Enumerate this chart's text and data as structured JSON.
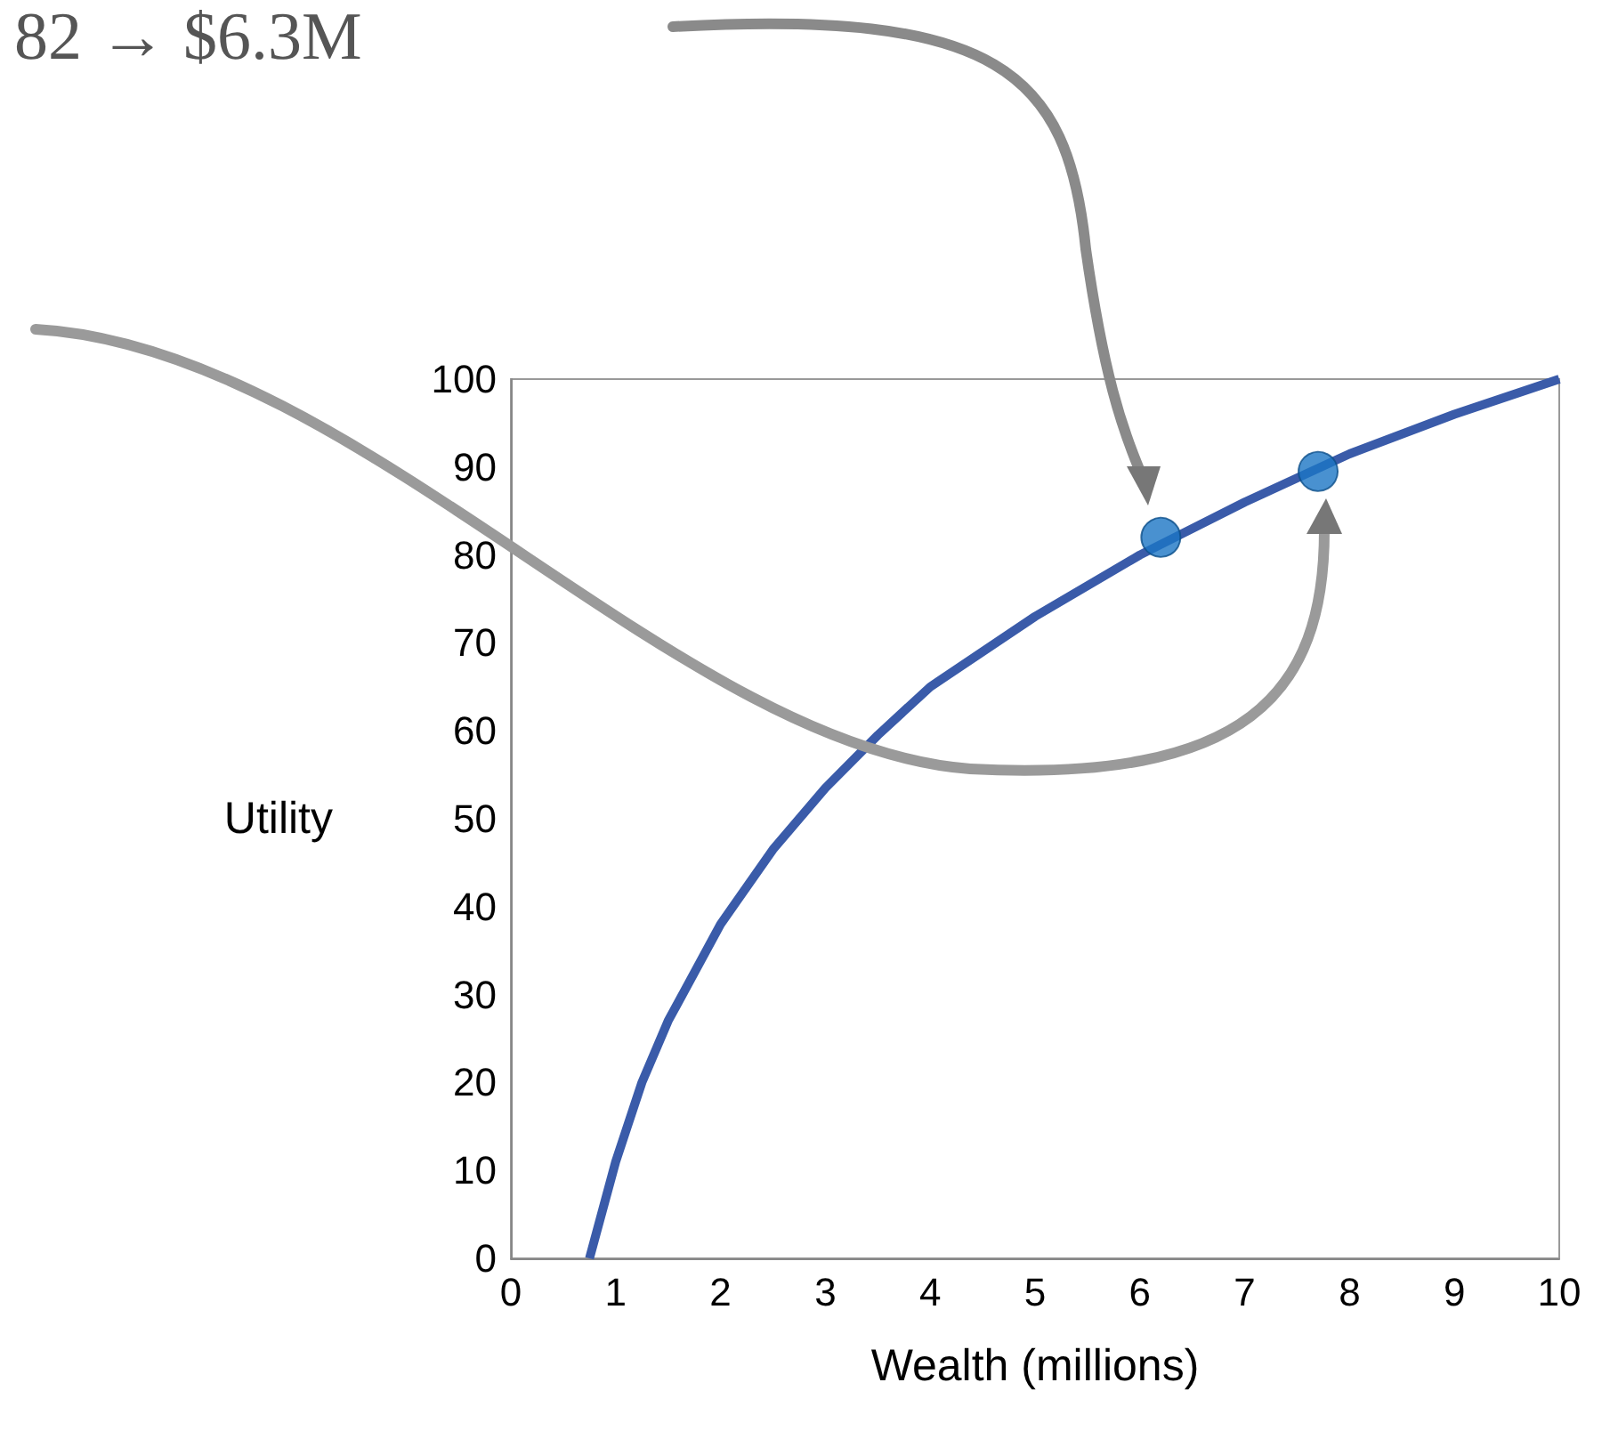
{
  "chart_data": {
    "type": "line",
    "xlabel": "Wealth (millions)",
    "ylabel": "Utility",
    "annotations": [
      "82 → $6.3M"
    ],
    "xlim": [
      0,
      10
    ],
    "xticks": [
      0,
      1,
      2,
      3,
      4,
      5,
      6,
      7,
      8,
      9,
      10
    ],
    "ylim": [
      0,
      100
    ],
    "yticks": [
      0,
      10,
      20,
      30,
      40,
      50,
      60,
      70,
      80,
      90,
      100
    ],
    "series": [
      {
        "color": "#3a5ba9",
        "marker": "none",
        "x": [
          0.75,
          1,
          1.25,
          1.5,
          2,
          2.5,
          3,
          3.5,
          4,
          5,
          6,
          7,
          8,
          9,
          10
        ],
        "values": [
          0,
          11,
          20,
          27,
          38,
          46.5,
          53.5,
          59.5,
          65,
          73,
          80,
          86,
          91.5,
          96,
          100
        ]
      },
      {
        "type": "scatter",
        "color": "#1b75c4",
        "marker": "circle",
        "x": [
          6.2,
          7.7
        ],
        "values": [
          82,
          89.5
        ]
      }
    ]
  }
}
